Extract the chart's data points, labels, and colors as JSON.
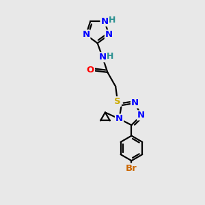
{
  "bg_color": "#e8e8e8",
  "atom_colors": {
    "N": "#0000ff",
    "O": "#ff0000",
    "S": "#ccaa00",
    "Br": "#cc6600",
    "C": "#000000",
    "H": "#2a9090"
  },
  "bond_color": "#000000",
  "bond_lw": 1.6
}
